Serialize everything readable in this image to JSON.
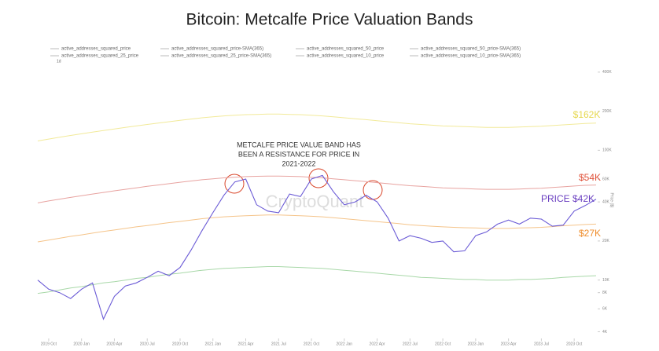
{
  "chart_data": {
    "type": "line",
    "title": "Bitcoin: Metcalfe Price Valuation Bands",
    "toolbar_label": "1d",
    "legend": [
      "active_addresses_squared_price",
      "active_addresses_squared_price-SMA(365)",
      "active_addresses_squared_50_price",
      "active_addresses_squared_50_price-SMA(365)",
      "active_addresses_squared_25_price",
      "active_addresses_squared_25_price-SMA(365)",
      "active_addresses_squared_10_price",
      "active_addresses_squared_10_price-SMA(365)"
    ],
    "ylabel": "Price ($)",
    "watermark": "CryptoQuant",
    "log_y": true,
    "annotations": [
      {
        "text": "METCALFE PRICE VALUE BAND  HAS",
        "color": "#333333"
      },
      {
        "text": "BEEN A RESISTANCE FOR PRICE IN",
        "color": "#333333"
      },
      {
        "text": "2021-2022",
        "color": "#333333"
      },
      {
        "text": "$162K",
        "color": "#e6d84e"
      },
      {
        "text": "$54K",
        "color": "#e0523a"
      },
      {
        "text": "PRICE $42K",
        "color": "#6a3fc0"
      },
      {
        "text": "$27K",
        "color": "#ef8c2a"
      }
    ],
    "x": [
      "2019 Sep",
      "2019 Oct",
      "2019 Nov",
      "2019 Dec",
      "2020 Jan",
      "2020 Feb",
      "2020 Mar",
      "2020 Apr",
      "2020 May",
      "2020 Jun",
      "2020 Jul",
      "2020 Aug",
      "2020 Sep",
      "2020 Oct",
      "2020 Nov",
      "2020 Dec",
      "2021 Jan",
      "2021 Feb",
      "2021 Mar",
      "2021 Apr",
      "2021 May",
      "2021 Jun",
      "2021 Jul",
      "2021 Aug",
      "2021 Sep",
      "2021 Oct",
      "2021 Nov",
      "2021 Dec",
      "2022 Jan",
      "2022 Feb",
      "2022 Mar",
      "2022 Apr",
      "2022 May",
      "2022 Jun",
      "2022 Jul",
      "2022 Aug",
      "2022 Sep",
      "2022 Oct",
      "2022 Nov",
      "2022 Dec",
      "2023 Jan",
      "2023 Feb",
      "2023 Mar",
      "2023 Apr",
      "2023 May",
      "2023 Jun",
      "2023 Jul",
      "2023 Aug",
      "2023 Sep",
      "2023 Oct",
      "2023 Nov",
      "2023 Dec"
    ],
    "xticks": [
      "2019 Oct",
      "2020 Jan",
      "2020 Apr",
      "2020 Jul",
      "2020 Oct",
      "2021 Jan",
      "2021 Apr",
      "2021 Jul",
      "2021 Oct",
      "2022 Jan",
      "2022 Apr",
      "2022 Jul",
      "2022 Oct",
      "2023 Jan",
      "2023 Apr",
      "2023 Jul",
      "2023 Oct"
    ],
    "ylim": [
      3600,
      440000
    ],
    "yticks": [
      {
        "value": 4000,
        "label": "4K"
      },
      {
        "value": 6000,
        "label": "6K"
      },
      {
        "value": 8000,
        "label": "8K"
      },
      {
        "value": 10000,
        "label": "10K"
      },
      {
        "value": 20000,
        "label": "20K"
      },
      {
        "value": 40000,
        "label": "40K"
      },
      {
        "value": 60000,
        "label": "60K"
      },
      {
        "value": 100000,
        "label": "100K"
      },
      {
        "value": 200000,
        "label": "200K"
      },
      {
        "value": 400000,
        "label": "400K"
      }
    ],
    "series": [
      {
        "color": "#f2ea9a",
        "values": [
          118000,
          122000,
          126000,
          130000,
          134000,
          138000,
          142000,
          146000,
          150000,
          154000,
          158000,
          162000,
          166000,
          170000,
          174000,
          178000,
          181000,
          184000,
          186000,
          188000,
          189000,
          190000,
          190000,
          189000,
          188000,
          186000,
          184000,
          181000,
          178000,
          175000,
          172000,
          169000,
          166000,
          163000,
          160000,
          158000,
          156000,
          154000,
          153000,
          152000,
          151000,
          150000,
          150000,
          150000,
          151000,
          152000,
          153000,
          155000,
          157000,
          159000,
          161000,
          162000
        ]
      },
      {
        "color": "#e8a3a0",
        "values": [
          39300,
          40700,
          42000,
          43300,
          44700,
          46000,
          47300,
          48700,
          50000,
          51300,
          52700,
          54000,
          55300,
          56700,
          58000,
          59300,
          60300,
          61300,
          62000,
          62700,
          63000,
          63300,
          63300,
          63000,
          62700,
          62000,
          61300,
          60300,
          59300,
          58300,
          57300,
          56300,
          55300,
          54300,
          53300,
          52700,
          52000,
          51300,
          51000,
          50700,
          50300,
          50000,
          50000,
          50000,
          50300,
          50700,
          51000,
          51700,
          52300,
          53000,
          53700,
          54000
        ]
      },
      {
        "color": "#f5c48a",
        "values": [
          19700,
          20300,
          21000,
          21700,
          22300,
          23000,
          23700,
          24300,
          25000,
          25700,
          26300,
          27000,
          27700,
          28300,
          29000,
          29700,
          30200,
          30700,
          31000,
          31300,
          31500,
          31700,
          31700,
          31500,
          31300,
          31000,
          30700,
          30200,
          29700,
          29200,
          28700,
          28200,
          27700,
          27200,
          26700,
          26300,
          26000,
          25700,
          25500,
          25300,
          25200,
          25000,
          25000,
          25000,
          25200,
          25300,
          25500,
          25800,
          26200,
          26500,
          26800,
          27000
        ]
      },
      {
        "color": "#a8d8a8",
        "values": [
          7900,
          8100,
          8400,
          8700,
          8900,
          9200,
          9500,
          9700,
          10000,
          10300,
          10500,
          10800,
          11100,
          11300,
          11600,
          11900,
          12100,
          12300,
          12400,
          12500,
          12600,
          12700,
          12700,
          12600,
          12500,
          12400,
          12300,
          12100,
          11900,
          11700,
          11500,
          11300,
          11100,
          10900,
          10700,
          10500,
          10400,
          10300,
          10200,
          10100,
          10100,
          10000,
          10000,
          10000,
          10100,
          10100,
          10200,
          10300,
          10500,
          10600,
          10700,
          10800
        ]
      },
      {
        "color": "#6b5bd6",
        "values": [
          10000,
          8500,
          8000,
          7200,
          8500,
          9500,
          5000,
          7500,
          9000,
          9500,
          10500,
          11700,
          10800,
          12500,
          17000,
          24000,
          33000,
          45000,
          57000,
          60000,
          38000,
          34000,
          33000,
          46000,
          44000,
          60000,
          64000,
          48000,
          38000,
          40000,
          45000,
          40000,
          30000,
          20000,
          22000,
          21000,
          19500,
          20000,
          16500,
          16800,
          22000,
          23500,
          27000,
          29000,
          27000,
          30000,
          29500,
          26000,
          26500,
          34000,
          37500,
          42000
        ]
      }
    ]
  }
}
